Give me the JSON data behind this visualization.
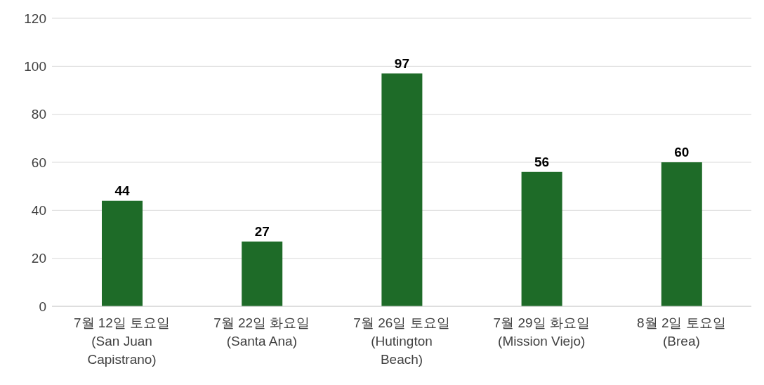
{
  "chart_data": {
    "type": "bar",
    "categories": [
      "7월 12일 토요일 (San Juan Capistrano)",
      "7월 22일 화요일 (Santa Ana)",
      "7월 26일 토요일 (Hutington Beach)",
      "7월 29일 화요일 (Mission Viejo)",
      "8월 2일 토요일 (Brea)"
    ],
    "values": [
      44,
      27,
      97,
      56,
      60
    ],
    "color": "#1e6b28",
    "ylim": [
      0,
      120
    ],
    "yticks": [
      0,
      20,
      40,
      60,
      80,
      100,
      120
    ],
    "grid": "y",
    "data_labels": true
  }
}
